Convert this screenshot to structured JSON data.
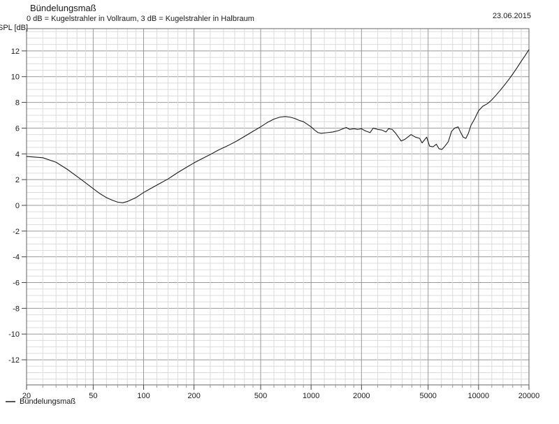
{
  "header": {
    "title": "Bündelungsmaß",
    "subtitle": "0 dB = Kugelstrahler in Vollraum, 3 dB = Kugelstrahler in Halbraum",
    "date": "23.06.2015"
  },
  "y_axis": {
    "label": "SPL [dB]",
    "tick_values": [
      12,
      10,
      8,
      6,
      4,
      2,
      0,
      -2,
      -4,
      -6,
      -8,
      -10,
      -12
    ],
    "minor_step": 0.5,
    "major_step": 2
  },
  "x_axis": {
    "tick_values": [
      20,
      50,
      100,
      200,
      500,
      1000,
      2000,
      5000,
      10000,
      20000
    ],
    "minor_values": [
      25,
      30,
      35,
      40,
      45,
      60,
      70,
      80,
      90,
      120,
      140,
      160,
      180,
      250,
      300,
      350,
      400,
      450,
      600,
      700,
      800,
      900,
      1200,
      1400,
      1600,
      1800,
      2500,
      3000,
      3500,
      4000,
      4500,
      6000,
      7000,
      8000,
      9000,
      12000,
      14000,
      16000,
      18000
    ]
  },
  "legend": {
    "label": "Bündelungsmaß"
  },
  "colors": {
    "background": "#ffffff",
    "grid_minor": "#dcdcdc",
    "grid_major": "#999999",
    "border": "#666666",
    "tick_major": "#444444",
    "tick_minor": "#999999",
    "curve": "#1c1c1c",
    "text": "#1a1a1a"
  },
  "chart_data": {
    "type": "line",
    "title": "Bündelungsmaß",
    "subtitle": "0 dB = Kugelstrahler in Vollraum, 3 dB = Kugelstrahler in Halbraum",
    "date_annotation": "23.06.2015",
    "xlabel": "",
    "ylabel": "SPL [dB]",
    "x_scale": "log",
    "xlim": [
      20,
      20000
    ],
    "ylim": [
      -13.95,
      13.73
    ],
    "grid": true,
    "legend_position": "bottom-left",
    "series": [
      {
        "name": "Bündelungsmaß",
        "x": [
          20,
          25,
          30,
          35,
          40,
          45,
          50,
          55,
          60,
          65,
          70,
          75,
          80,
          90,
          100,
          110,
          125,
          140,
          160,
          180,
          200,
          225,
          250,
          280,
          320,
          360,
          400,
          450,
          500,
          550,
          600,
          650,
          700,
          750,
          800,
          850,
          900,
          950,
          1000,
          1050,
          1100,
          1150,
          1250,
          1350,
          1450,
          1550,
          1620,
          1700,
          1800,
          1900,
          2000,
          2100,
          2250,
          2350,
          2500,
          2650,
          2800,
          2900,
          3050,
          3200,
          3450,
          3650,
          3950,
          4200,
          4450,
          4600,
          4900,
          5100,
          5350,
          5600,
          5800,
          6050,
          6300,
          6600,
          6900,
          7200,
          7550,
          7800,
          8100,
          8400,
          8700,
          9000,
          9500,
          10000,
          10600,
          11300,
          12000,
          12700,
          13500,
          14300,
          15200,
          16100,
          17000,
          18000,
          19000,
          20000
        ],
        "y": [
          3.8,
          3.7,
          3.35,
          2.8,
          2.25,
          1.75,
          1.3,
          0.9,
          0.6,
          0.4,
          0.25,
          0.2,
          0.3,
          0.6,
          1.0,
          1.3,
          1.7,
          2.05,
          2.55,
          2.95,
          3.3,
          3.65,
          3.95,
          4.3,
          4.65,
          5.0,
          5.35,
          5.75,
          6.1,
          6.45,
          6.7,
          6.85,
          6.9,
          6.85,
          6.75,
          6.6,
          6.5,
          6.3,
          6.1,
          5.85,
          5.65,
          5.6,
          5.65,
          5.7,
          5.8,
          5.95,
          6.05,
          5.9,
          5.95,
          5.9,
          5.95,
          5.8,
          5.65,
          6.0,
          5.9,
          5.85,
          5.7,
          5.95,
          5.9,
          5.6,
          5.0,
          5.15,
          5.5,
          5.3,
          5.2,
          4.85,
          5.3,
          4.6,
          4.55,
          4.75,
          4.4,
          4.35,
          4.6,
          4.95,
          5.75,
          6.0,
          6.1,
          5.7,
          5.3,
          5.2,
          5.6,
          6.2,
          6.75,
          7.35,
          7.7,
          7.9,
          8.2,
          8.55,
          8.95,
          9.35,
          9.8,
          10.25,
          10.7,
          11.2,
          11.65,
          12.1
        ]
      }
    ]
  }
}
